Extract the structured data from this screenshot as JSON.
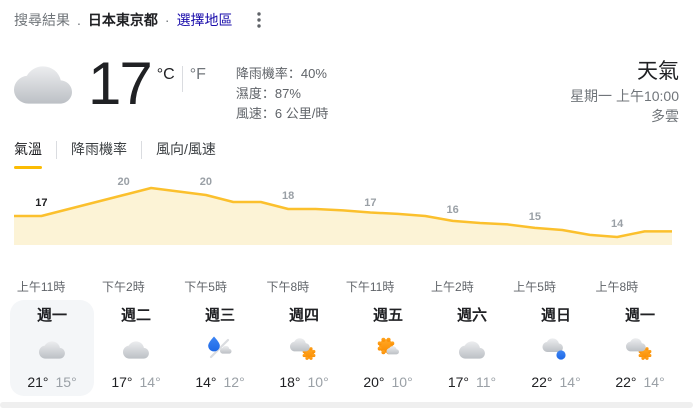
{
  "header": {
    "context_label": "搜尋結果",
    "separator": ".",
    "location": "日本東京都",
    "middot": "·",
    "choose_region": "選擇地區",
    "menu_icon": "kebab-menu-icon"
  },
  "current": {
    "temp": "17",
    "unit_c": "°C",
    "unit_f": "°F",
    "condition_icon": "cloudy",
    "stats": [
      {
        "key": "precip",
        "label": "降雨機率",
        "value": "40%"
      },
      {
        "key": "humidity",
        "label": "濕度",
        "value": "87%"
      },
      {
        "key": "wind",
        "label": "風速",
        "value": "6 公里/時"
      }
    ],
    "title": "天氣",
    "datetime": "星期一 上午10:00",
    "condition": "多雲"
  },
  "tabs": [
    {
      "key": "temperature",
      "label": "氣溫",
      "active": true
    },
    {
      "key": "precipitation",
      "label": "降雨機率",
      "active": false
    },
    {
      "key": "wind",
      "label": "風向/風速",
      "active": false
    }
  ],
  "chart_data": {
    "type": "area",
    "unit": "°C",
    "tick_labels": [
      "上午11時",
      "下午2時",
      "下午5時",
      "下午8時",
      "下午11時",
      "上午2時",
      "上午5時",
      "上午8時"
    ],
    "tick_values": [
      17,
      20,
      20,
      18,
      17,
      16,
      15,
      14
    ],
    "values_hourly": [
      17,
      17,
      18,
      19,
      20,
      21,
      20.5,
      20,
      19,
      19,
      18,
      18,
      17.8,
      17.5,
      17.3,
      17,
      16.3,
      16,
      15.8,
      15.3,
      15,
      14.3,
      14,
      14.8,
      14.8
    ],
    "ylim": [
      12,
      23
    ],
    "grid": false,
    "legend": "none",
    "line_color": "#fbc02d",
    "fill_color": "#fcf3d6",
    "label_color": "#9aa0a6",
    "current_label_color": "#202124"
  },
  "forecast": {
    "days": [
      {
        "name": "週一",
        "icon": "cloudy",
        "high": "21°",
        "low": "15°",
        "selected": true
      },
      {
        "name": "週二",
        "icon": "cloudy",
        "high": "17°",
        "low": "14°",
        "selected": false
      },
      {
        "name": "週三",
        "icon": "rain-snow-mix",
        "high": "14°",
        "low": "12°",
        "selected": false
      },
      {
        "name": "週四",
        "icon": "partly-sunny",
        "high": "18°",
        "low": "10°",
        "selected": false
      },
      {
        "name": "週五",
        "icon": "mostly-sunny",
        "high": "20°",
        "low": "10°",
        "selected": false
      },
      {
        "name": "週六",
        "icon": "cloudy",
        "high": "17°",
        "low": "11°",
        "selected": false
      },
      {
        "name": "週日",
        "icon": "rain",
        "high": "22°",
        "low": "14°",
        "selected": false
      },
      {
        "name": "週一",
        "icon": "partly-sunny",
        "high": "22°",
        "low": "14°",
        "selected": false
      }
    ]
  },
  "colors": {
    "accent_yellow": "#fbbc04",
    "chart_line": "#fbc02d",
    "chart_fill": "#fcf3d6",
    "link_blue": "#1a0dab",
    "rain_blue": "#2573f0",
    "sun_orange": "#fb9b10"
  }
}
